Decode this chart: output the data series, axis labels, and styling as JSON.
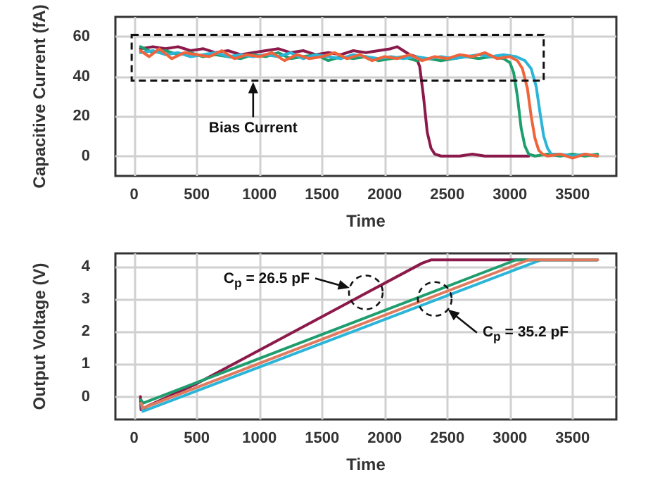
{
  "chart_data": [
    {
      "type": "line",
      "xlabel": "Time",
      "ylabel": "Capacitive Current (fA)",
      "xlim": [
        -150,
        3850
      ],
      "ylim": [
        -10,
        70
      ],
      "xticks": [
        0,
        500,
        1000,
        1500,
        2000,
        2500,
        3000,
        3500
      ],
      "yticks": [
        0,
        20,
        40,
        60
      ],
      "grid": true,
      "marker": "none",
      "line_style": "solid",
      "annotations": [
        "Bias Current"
      ],
      "series": [
        {
          "color": "#8b1a4a",
          "x": [
            50,
            150,
            250,
            350,
            450,
            550,
            650,
            750,
            850,
            950,
            1050,
            1150,
            1250,
            1350,
            1450,
            1550,
            1650,
            1750,
            1850,
            1950,
            2050,
            2100,
            2150,
            2200,
            2250,
            2280,
            2310,
            2340,
            2370,
            2400,
            2450,
            2500,
            2600,
            2700,
            2800,
            2900,
            3000,
            3100,
            3150
          ],
          "values": [
            54,
            55,
            54,
            55,
            53,
            54,
            52,
            53,
            51,
            52,
            53,
            54,
            52,
            53,
            51,
            52,
            51,
            53,
            52,
            53,
            54,
            55,
            53,
            51,
            50,
            45,
            30,
            12,
            4,
            1,
            0,
            0,
            0,
            1,
            0,
            0,
            0,
            0,
            0
          ]
        },
        {
          "color": "#1e9e6e",
          "x": [
            50,
            150,
            250,
            350,
            450,
            550,
            650,
            750,
            850,
            950,
            1050,
            1150,
            1250,
            1350,
            1450,
            1550,
            1650,
            1750,
            1850,
            1950,
            2050,
            2150,
            2250,
            2350,
            2450,
            2550,
            2650,
            2750,
            2850,
            2950,
            3000,
            3030,
            3060,
            3090,
            3120,
            3150,
            3200,
            3300,
            3400,
            3500,
            3600,
            3700
          ],
          "values": [
            55,
            52,
            53,
            51,
            52,
            50,
            51,
            50,
            49,
            51,
            50,
            52,
            49,
            50,
            51,
            48,
            50,
            49,
            50,
            48,
            49,
            50,
            48,
            49,
            48,
            49,
            50,
            49,
            50,
            49,
            47,
            42,
            30,
            14,
            5,
            1,
            0,
            1,
            0,
            1,
            0,
            1
          ]
        },
        {
          "color": "#2bb5d8",
          "x": [
            50,
            150,
            250,
            350,
            450,
            550,
            650,
            750,
            850,
            950,
            1050,
            1150,
            1250,
            1350,
            1450,
            1550,
            1650,
            1750,
            1850,
            1950,
            2050,
            2150,
            2250,
            2350,
            2450,
            2550,
            2650,
            2750,
            2850,
            2950,
            3050,
            3120,
            3170,
            3210,
            3240,
            3270,
            3300,
            3330,
            3400,
            3500,
            3600,
            3700
          ],
          "values": [
            52,
            53,
            51,
            52,
            50,
            51,
            52,
            50,
            51,
            50,
            51,
            50,
            52,
            49,
            51,
            50,
            49,
            51,
            50,
            49,
            50,
            49,
            50,
            49,
            50,
            49,
            50,
            51,
            50,
            51,
            50,
            48,
            44,
            35,
            22,
            10,
            4,
            1,
            1,
            0,
            1,
            0
          ]
        },
        {
          "color": "#f0643c",
          "x": [
            50,
            120,
            200,
            300,
            400,
            500,
            600,
            700,
            800,
            900,
            1000,
            1100,
            1200,
            1300,
            1400,
            1500,
            1600,
            1700,
            1800,
            1900,
            2000,
            2100,
            2200,
            2300,
            2400,
            2500,
            2600,
            2700,
            2800,
            2900,
            3000,
            3060,
            3100,
            3140,
            3170,
            3200,
            3230,
            3260,
            3300,
            3400,
            3500,
            3600,
            3700
          ],
          "values": [
            53,
            50,
            54,
            49,
            52,
            51,
            50,
            53,
            49,
            51,
            50,
            52,
            48,
            51,
            49,
            50,
            52,
            49,
            51,
            48,
            50,
            49,
            51,
            48,
            50,
            49,
            51,
            50,
            52,
            49,
            50,
            48,
            44,
            34,
            20,
            9,
            3,
            1,
            0,
            1,
            -1,
            1,
            0
          ]
        }
      ]
    },
    {
      "type": "line",
      "xlabel": "Time",
      "ylabel": "Output Voltage (V)",
      "xlim": [
        -150,
        3850
      ],
      "ylim": [
        -0.7,
        4.4
      ],
      "xticks": [
        0,
        500,
        1000,
        1500,
        2000,
        2500,
        3000,
        3500
      ],
      "yticks": [
        0,
        1,
        2,
        3,
        4
      ],
      "grid": true,
      "marker": "none",
      "line_style": "solid",
      "annotations": [
        "C$_{p}$ = 26.5 pF",
        "C$_{p}$ = 35.2 pF"
      ],
      "series": [
        {
          "color": "#8b1a4a",
          "x": [
            50,
            55,
            70,
            100,
            500,
            2300,
            2370,
            3700
          ],
          "values": [
            0,
            -0.4,
            -0.4,
            -0.3,
            0.4,
            4.1,
            4.2,
            4.2
          ]
        },
        {
          "color": "#2bb5d8",
          "x": [
            55,
            70,
            3250,
            3700
          ],
          "values": [
            -0.2,
            -0.45,
            4.2,
            4.2
          ]
        },
        {
          "color": "#1e9e6e",
          "x": [
            55,
            70,
            3050,
            3700
          ],
          "values": [
            -0.1,
            -0.2,
            4.2,
            4.2
          ]
        },
        {
          "color": "#e07a5f",
          "x": [
            55,
            70,
            3150,
            3700
          ],
          "values": [
            -0.2,
            -0.35,
            4.2,
            4.2
          ]
        }
      ]
    }
  ]
}
